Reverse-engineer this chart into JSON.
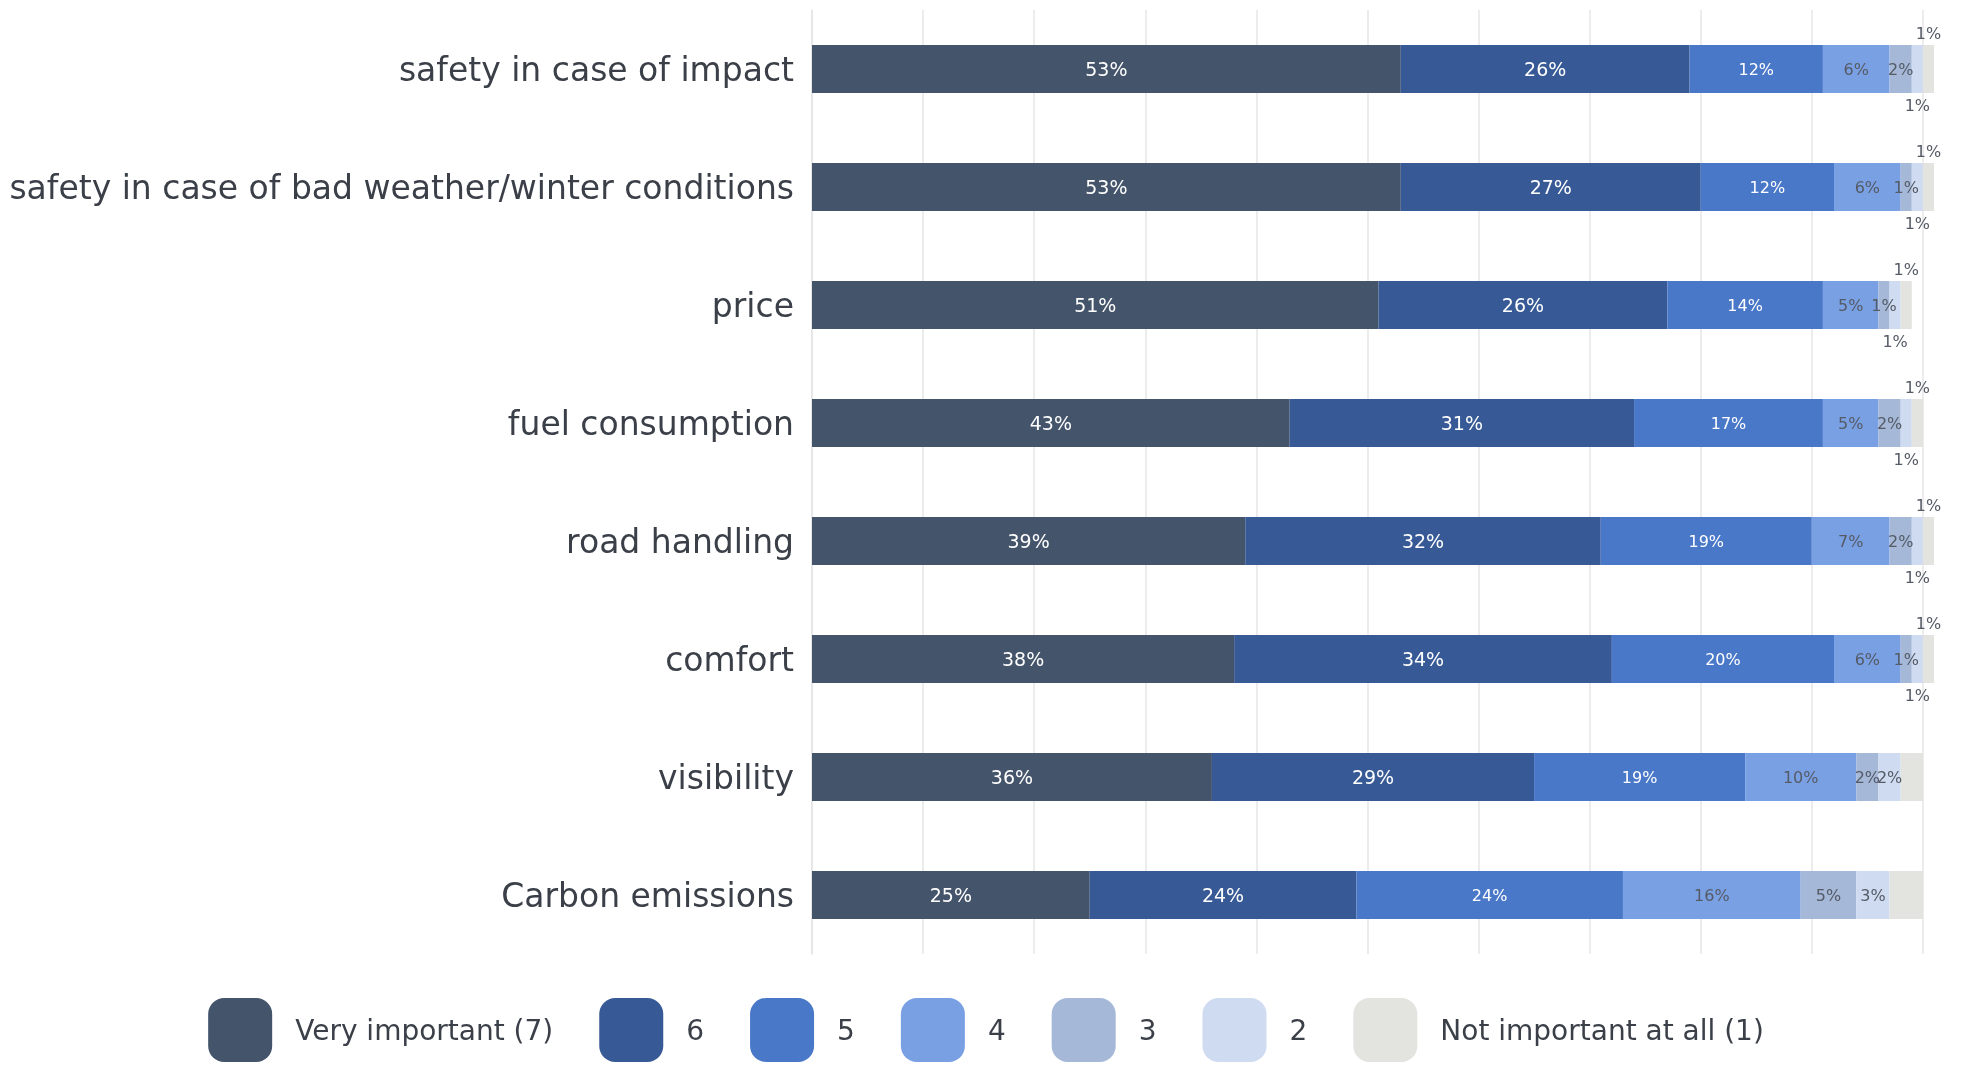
{
  "chart_data": {
    "type": "bar",
    "orientation": "horizontal",
    "stacked": true,
    "categories": [
      "safety in case of impact",
      "safety in case of bad weather/winter conditions",
      "price",
      "fuel consumption",
      "road handling",
      "comfort",
      "visibility",
      "Carbon emissions"
    ],
    "series": [
      {
        "name": "Very important (7)",
        "color": "#44546a",
        "values": [
          53,
          53,
          51,
          43,
          39,
          38,
          36,
          25
        ],
        "value_labels": [
          "53%",
          "53%",
          "51%",
          "43%",
          "39%",
          "38%",
          "36%",
          "25%"
        ]
      },
      {
        "name": "6",
        "color": "#375a96",
        "values": [
          26,
          27,
          26,
          31,
          32,
          34,
          29,
          24
        ],
        "value_labels": [
          "26%",
          "27%",
          "26%",
          "31%",
          "32%",
          "34%",
          "29%",
          "24%"
        ]
      },
      {
        "name": "5",
        "color": "#4a78c8",
        "values": [
          12,
          12,
          14,
          17,
          19,
          20,
          19,
          24
        ],
        "value_labels": [
          "12%",
          "12%",
          "14%",
          "17%",
          "19%",
          "20%",
          "19%",
          "24%"
        ]
      },
      {
        "name": "4",
        "color": "#7aa0e4",
        "values": [
          6,
          6,
          5,
          5,
          7,
          6,
          10,
          16
        ],
        "value_labels": [
          "6%",
          "6%",
          "5%",
          "5%",
          "7%",
          "6%",
          "10%",
          "16%"
        ]
      },
      {
        "name": "3",
        "color": "#a5b8d8",
        "values": [
          2,
          1,
          1,
          2,
          2,
          1,
          2,
          5
        ],
        "value_labels": [
          "2%",
          "1%",
          "1%",
          "2%",
          "2%",
          "1%",
          "2%",
          "5%"
        ]
      },
      {
        "name": "2",
        "color": "#cfdbf0",
        "values": [
          1,
          1,
          1,
          1,
          1,
          1,
          2,
          3
        ],
        "value_labels": [
          "1%",
          "1%",
          "1%",
          "1%",
          "1%",
          "1%",
          "2%",
          "3%"
        ]
      },
      {
        "name": "Not important at all (1)",
        "color": "#e3e4e0",
        "values": [
          1,
          1,
          1,
          1,
          1,
          1,
          2,
          3
        ],
        "value_labels": [
          "1%",
          "1%",
          "1%",
          "1%",
          "1%",
          "1%",
          null,
          null
        ]
      }
    ],
    "xlim": [
      0,
      101
    ],
    "xticks": [
      {
        "value": 0,
        "label": null
      },
      {
        "value": 10,
        "label": null
      },
      {
        "value": 20,
        "label": null
      },
      {
        "value": 30,
        "label": null
      },
      {
        "value": 40,
        "label": null
      },
      {
        "value": 50,
        "label": null
      },
      {
        "value": 60,
        "label": null
      },
      {
        "value": 70,
        "label": null
      },
      {
        "value": 80,
        "label": null
      },
      {
        "value": 90,
        "label": null
      },
      {
        "value": 100,
        "label": null
      }
    ],
    "grid": "x",
    "legend": "bottom",
    "tick_labels": "y"
  }
}
